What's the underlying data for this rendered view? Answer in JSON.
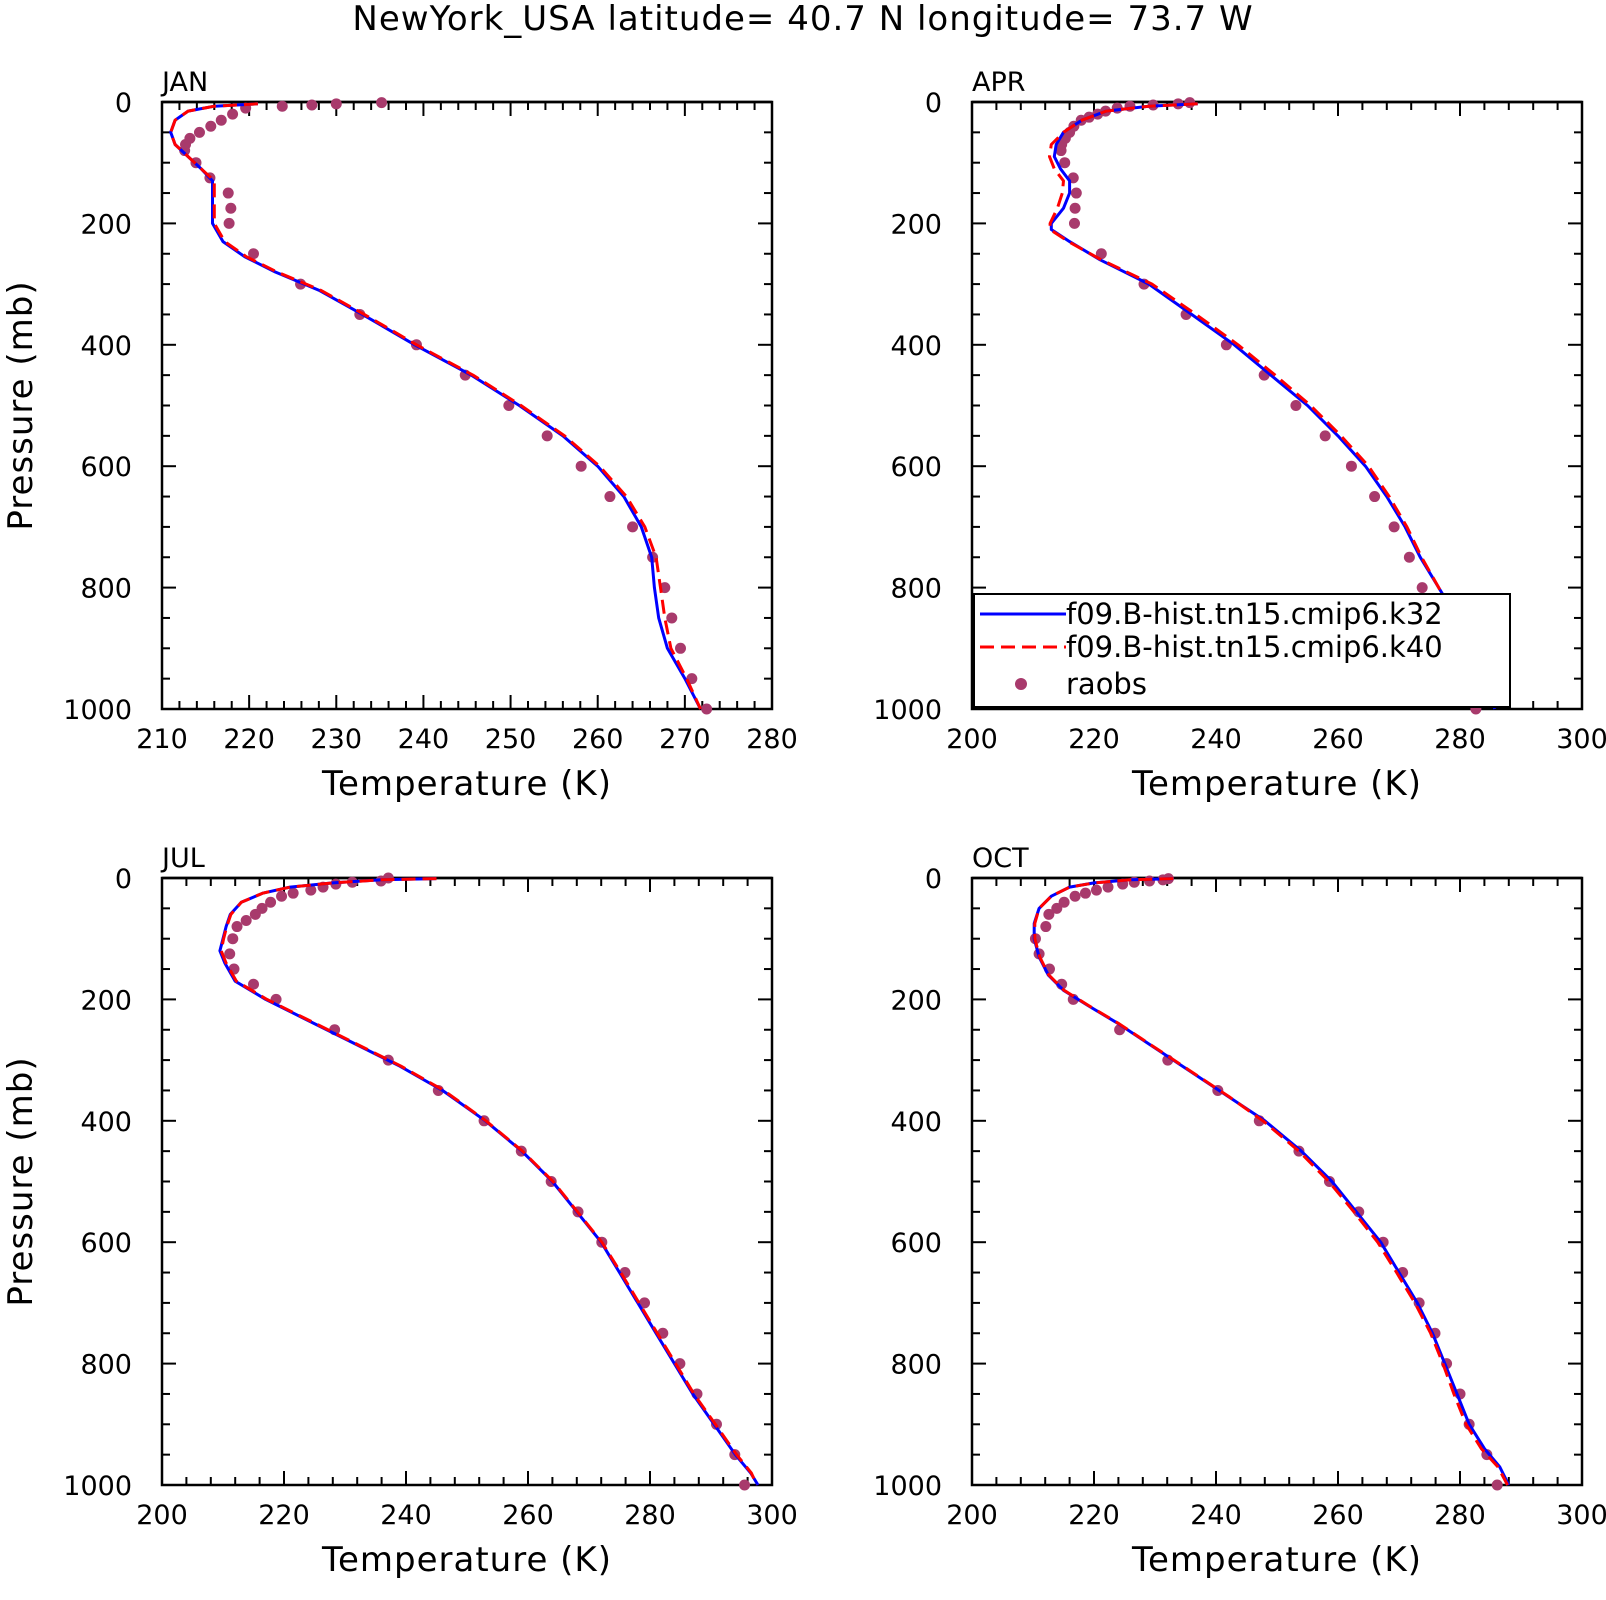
{
  "title": "NewYork_USA  latitude= 40.7 N longitude= 73.7 W",
  "legend": {
    "entries": [
      {
        "label": "f09.B-hist.tn15.cmip6.k32",
        "style": "solid",
        "color": "#0000ff"
      },
      {
        "label": "f09.B-hist.tn15.cmip6.k40",
        "style": "dashed",
        "color": "#ff0000"
      },
      {
        "label": "raobs",
        "style": "dot",
        "color": "#a83a6c"
      }
    ]
  },
  "colors": {
    "k32": "#0000ff",
    "k40": "#ff0000",
    "raobs": "#a83a6c"
  },
  "chart_data": [
    {
      "type": "line",
      "panel_label": "JAN",
      "xlabel": "Temperature (K)",
      "ylabel": "Pressure (mb)",
      "xlim": [
        210,
        280
      ],
      "ylim": [
        1000,
        0
      ],
      "xticks": [
        210,
        220,
        230,
        240,
        250,
        260,
        270,
        280
      ],
      "yticks": [
        0,
        200,
        400,
        600,
        800,
        1000
      ],
      "series": [
        {
          "name": "f09.B-hist.tn15.cmip6.k32",
          "x": [
            221,
            216,
            213,
            211.5,
            211,
            211.5,
            213,
            214.5,
            215.8,
            215.8,
            215.8,
            217,
            219.5,
            223,
            228,
            233,
            239,
            245.5,
            251,
            256,
            260,
            263,
            265,
            266.2,
            266.5,
            267,
            268,
            270,
            271.8
          ],
          "y": [
            3,
            7,
            15,
            30,
            50,
            70,
            90,
            110,
            130,
            150,
            200,
            230,
            255,
            280,
            310,
            350,
            400,
            450,
            500,
            550,
            600,
            650,
            700,
            750,
            800,
            850,
            900,
            950,
            1000
          ]
        },
        {
          "name": "f09.B-hist.tn15.cmip6.k40",
          "x": [
            221,
            216,
            213,
            211.5,
            211,
            211.5,
            213,
            214.5,
            216,
            216,
            216,
            217.2,
            219.7,
            223.2,
            228.2,
            233.2,
            239.2,
            245.7,
            251.2,
            256.2,
            260.2,
            263.3,
            265.4,
            266.7,
            267.2,
            267.7,
            268.4,
            270.2,
            271.8
          ],
          "y": [
            3,
            7,
            15,
            30,
            50,
            70,
            90,
            110,
            130,
            150,
            200,
            230,
            255,
            280,
            310,
            350,
            400,
            450,
            500,
            550,
            600,
            650,
            700,
            750,
            800,
            850,
            900,
            950,
            1000
          ]
        },
        {
          "name": "raobs",
          "x": [
            235.2,
            230,
            227.2,
            223.8,
            219.6,
            218.1,
            216.8,
            215.6,
            214.3,
            213.2,
            212.7,
            212.6,
            213.9,
            215.5,
            217.6,
            217.9,
            217.7,
            220.5,
            225.9,
            232.7,
            239.2,
            244.8,
            249.8,
            254.2,
            258.1,
            261.4,
            264,
            266.3,
            267.7,
            268.5,
            269.5,
            270.8,
            272.5
          ],
          "y": [
            1,
            3,
            5,
            7,
            10,
            20,
            30,
            40,
            50,
            60,
            70,
            80,
            100,
            125,
            150,
            175,
            200,
            250,
            300,
            350,
            400,
            450,
            500,
            550,
            600,
            650,
            700,
            750,
            800,
            850,
            900,
            950,
            1000
          ]
        }
      ]
    },
    {
      "type": "line",
      "panel_label": "APR",
      "xlabel": "Temperature (K)",
      "ylabel": "",
      "xlim": [
        200,
        300
      ],
      "ylim": [
        1000,
        0
      ],
      "xticks": [
        200,
        220,
        240,
        260,
        280,
        300
      ],
      "yticks": [
        0,
        200,
        400,
        600,
        800,
        1000
      ],
      "series": [
        {
          "name": "f09.B-hist.tn15.cmip6.k32",
          "x": [
            237,
            229,
            222,
            218,
            215,
            213.8,
            213.5,
            214.5,
            216,
            216,
            215,
            213,
            213,
            216,
            221,
            229,
            236,
            243,
            249,
            255,
            260,
            264.5,
            268,
            271,
            273.5,
            276.5,
            279.5,
            282.5,
            285.7
          ],
          "y": [
            3,
            7,
            15,
            30,
            50,
            70,
            90,
            110,
            130,
            150,
            175,
            200,
            210,
            230,
            260,
            300,
            350,
            400,
            450,
            500,
            550,
            600,
            650,
            700,
            750,
            800,
            850,
            900,
            1000
          ]
        },
        {
          "name": "f09.B-hist.tn15.cmip6.k40",
          "x": [
            237,
            229,
            222,
            218,
            215,
            213,
            212.7,
            213.5,
            215,
            214.8,
            214,
            212.8,
            212.8,
            215.8,
            221.2,
            229.5,
            236.7,
            243.6,
            249.7,
            255.5,
            260.5,
            265,
            268.4,
            271.3,
            273.7,
            276.5,
            279.2,
            281.6,
            284.3
          ],
          "y": [
            3,
            7,
            15,
            30,
            50,
            70,
            90,
            110,
            130,
            150,
            175,
            200,
            210,
            230,
            260,
            300,
            350,
            400,
            450,
            500,
            550,
            600,
            650,
            700,
            750,
            800,
            850,
            900,
            1000
          ]
        },
        {
          "name": "raobs",
          "x": [
            235.7,
            233.8,
            229.7,
            225.9,
            223.8,
            221.9,
            220.6,
            219.2,
            217.9,
            216.7,
            216,
            215.3,
            214.7,
            214.6,
            215.2,
            216.6,
            217.1,
            216.9,
            216.8,
            221.2,
            228.2,
            235.1,
            241.7,
            247.9,
            253.1,
            257.9,
            262.2,
            266,
            269.2,
            271.7,
            273.8,
            275.7,
            278.5,
            281,
            282.6
          ],
          "y": [
            1,
            3,
            5,
            7,
            10,
            15,
            20,
            25,
            30,
            40,
            50,
            60,
            70,
            80,
            100,
            125,
            150,
            175,
            200,
            250,
            300,
            350,
            400,
            450,
            500,
            550,
            600,
            650,
            700,
            750,
            800,
            850,
            900,
            950,
            1000
          ]
        }
      ]
    },
    {
      "type": "line",
      "panel_label": "JUL",
      "xlabel": "Temperature (K)",
      "ylabel": "Pressure (mb)",
      "xlim": [
        200,
        300
      ],
      "ylim": [
        1000,
        0
      ],
      "xticks": [
        200,
        220,
        240,
        260,
        280,
        300
      ],
      "yticks": [
        0,
        200,
        400,
        600,
        800,
        1000
      ],
      "series": [
        {
          "name": "f09.B-hist.tn15.cmip6.k32",
          "x": [
            245,
            236,
            228,
            221,
            216.5,
            213,
            211.2,
            210.5,
            210,
            209.5,
            210.3,
            212,
            217,
            223,
            231,
            239,
            246,
            253,
            259,
            264,
            268,
            272,
            275,
            278,
            281,
            284,
            287,
            290.5,
            294,
            296.5,
            297.7
          ],
          "y": [
            1,
            3,
            8,
            15,
            25,
            40,
            60,
            80,
            100,
            120,
            140,
            170,
            200,
            230,
            270,
            310,
            350,
            400,
            450,
            500,
            550,
            600,
            650,
            700,
            750,
            800,
            850,
            900,
            950,
            980,
            1000
          ]
        },
        {
          "name": "f09.B-hist.tn15.cmip6.k40",
          "x": [
            245,
            236,
            228,
            221,
            216.5,
            213,
            211.3,
            210.6,
            210.1,
            209.7,
            210.5,
            212.2,
            217.2,
            223.2,
            231.2,
            239.2,
            246.2,
            253.1,
            259.1,
            264.1,
            268.1,
            272.1,
            275.2,
            278.2,
            281.2,
            284.2,
            287.2,
            290.7,
            294.2,
            296.6,
            297.5
          ],
          "y": [
            1,
            3,
            8,
            15,
            25,
            40,
            60,
            80,
            100,
            120,
            140,
            170,
            200,
            230,
            270,
            310,
            350,
            400,
            450,
            500,
            550,
            600,
            650,
            700,
            750,
            800,
            850,
            900,
            950,
            980,
            1000
          ]
        },
        {
          "name": "raobs",
          "x": [
            237.1,
            235.9,
            231.2,
            228.5,
            226.4,
            224.4,
            221.5,
            219.6,
            217.8,
            216.4,
            215.3,
            213.8,
            212.3,
            211.6,
            211.1,
            211.8,
            215,
            218.7,
            228.3,
            237.1,
            245.3,
            252.8,
            258.9,
            263.8,
            268.2,
            272.1,
            275.9,
            279.1,
            282.1,
            284.9,
            287.7,
            290.9,
            293.9,
            295.5
          ],
          "y": [
            0,
            5,
            7,
            10,
            15,
            20,
            25,
            30,
            40,
            50,
            60,
            70,
            80,
            100,
            125,
            150,
            175,
            200,
            250,
            300,
            350,
            400,
            450,
            500,
            550,
            600,
            650,
            700,
            750,
            800,
            850,
            900,
            950,
            1000
          ]
        }
      ]
    },
    {
      "type": "line",
      "panel_label": "OCT",
      "xlabel": "Temperature (K)",
      "ylabel": "",
      "xlim": [
        200,
        300
      ],
      "ylim": [
        1000,
        0
      ],
      "xticks": [
        200,
        220,
        240,
        260,
        280,
        300
      ],
      "yticks": [
        0,
        200,
        400,
        600,
        800,
        1000
      ],
      "series": [
        {
          "name": "f09.B-hist.tn15.cmip6.k32",
          "x": [
            233,
            226,
            220,
            216,
            213,
            211,
            210.2,
            210.2,
            211,
            212.5,
            215,
            219,
            224,
            230,
            236,
            242,
            248,
            254,
            259,
            263,
            267,
            270,
            273,
            275.5,
            277.5,
            279.5,
            281.5,
            284,
            286.5,
            288
          ],
          "y": [
            1,
            3,
            8,
            15,
            30,
            50,
            75,
            100,
            130,
            160,
            185,
            210,
            240,
            280,
            320,
            360,
            400,
            450,
            500,
            550,
            600,
            650,
            700,
            750,
            800,
            850,
            900,
            940,
            970,
            1000
          ]
        },
        {
          "name": "f09.B-hist.tn15.cmip6.k40",
          "x": [
            233,
            226,
            220,
            216,
            213,
            211,
            210.3,
            210.3,
            211.1,
            212.6,
            215.1,
            219.1,
            224.1,
            230.1,
            236.1,
            242.1,
            247.7,
            253.6,
            258.5,
            262.6,
            266.5,
            269.6,
            272.6,
            275.2,
            277.2,
            279,
            281,
            283.5,
            286.2,
            287.8
          ],
          "y": [
            1,
            3,
            8,
            15,
            30,
            50,
            75,
            100,
            130,
            160,
            185,
            210,
            240,
            280,
            320,
            360,
            400,
            450,
            500,
            550,
            600,
            650,
            700,
            750,
            800,
            850,
            900,
            940,
            970,
            1000
          ]
        },
        {
          "name": "raobs",
          "x": [
            232.2,
            231.3,
            229.1,
            226.6,
            224.7,
            222.3,
            220.4,
            218.6,
            216.9,
            215.1,
            213.9,
            212.6,
            212.1,
            210.4,
            211,
            212.7,
            214.7,
            216.6,
            224.2,
            232.1,
            240.3,
            247.1,
            253.6,
            258.6,
            263.4,
            267.4,
            270.6,
            273.3,
            275.9,
            277.8,
            280,
            281.5,
            284.4,
            286.1
          ],
          "y": [
            1,
            3,
            5,
            7,
            10,
            15,
            20,
            25,
            30,
            40,
            50,
            60,
            80,
            100,
            125,
            150,
            175,
            200,
            250,
            300,
            350,
            400,
            450,
            500,
            550,
            600,
            650,
            700,
            750,
            800,
            850,
            900,
            950,
            1000
          ]
        }
      ]
    }
  ]
}
